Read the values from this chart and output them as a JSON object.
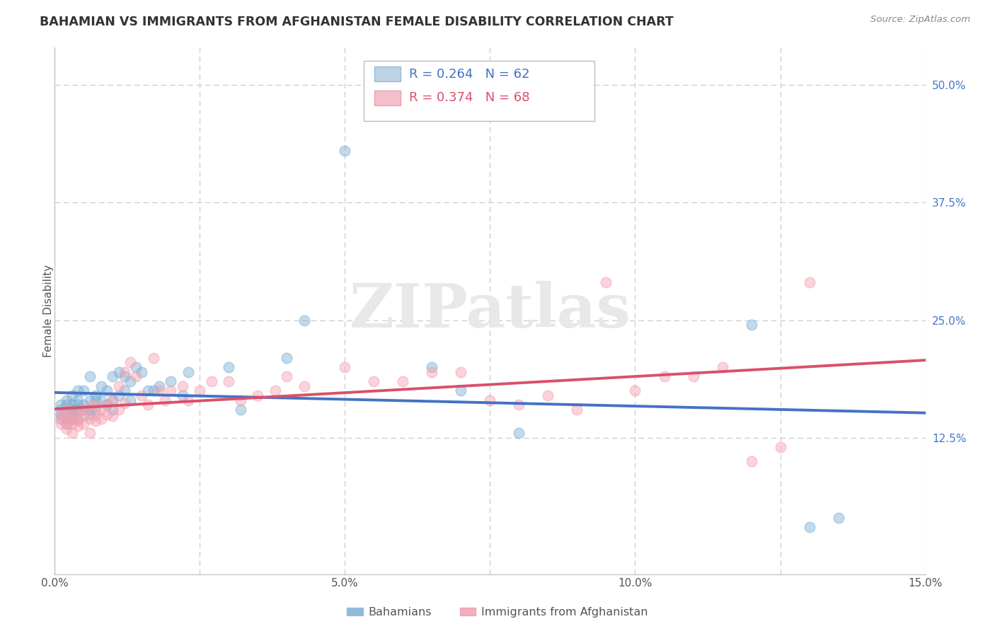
{
  "title": "BAHAMIAN VS IMMIGRANTS FROM AFGHANISTAN FEMALE DISABILITY CORRELATION CHART",
  "source": "Source: ZipAtlas.com",
  "ylabel": "Female Disability",
  "xlim": [
    0.0,
    0.15
  ],
  "ylim": [
    -0.02,
    0.54
  ],
  "xticks": [
    0.0,
    0.025,
    0.05,
    0.075,
    0.1,
    0.125,
    0.15
  ],
  "xticklabels": [
    "0.0%",
    "",
    "5.0%",
    "",
    "10.0%",
    "",
    "15.0%"
  ],
  "yticks_right": [
    0.125,
    0.25,
    0.375,
    0.5
  ],
  "yticklabels_right": [
    "12.5%",
    "25.0%",
    "37.5%",
    "50.0%"
  ],
  "grid_color": "#cccccc",
  "background_color": "#ffffff",
  "legend_line1": "R = 0.264   N = 62",
  "legend_line2": "R = 0.374   N = 68",
  "series1_label": "Bahamians",
  "series2_label": "Immigrants from Afghanistan",
  "series1_color": "#7bafd4",
  "series2_color": "#f4a0b0",
  "line1_color": "#4472c4",
  "line2_color": "#d9506a",
  "watermark": "ZIPatlas",
  "bahamians_x": [
    0.001,
    0.001,
    0.001,
    0.001,
    0.002,
    0.002,
    0.002,
    0.002,
    0.002,
    0.003,
    0.003,
    0.003,
    0.003,
    0.003,
    0.003,
    0.004,
    0.004,
    0.004,
    0.004,
    0.004,
    0.005,
    0.005,
    0.005,
    0.006,
    0.006,
    0.006,
    0.006,
    0.007,
    0.007,
    0.007,
    0.008,
    0.008,
    0.009,
    0.009,
    0.01,
    0.01,
    0.01,
    0.011,
    0.011,
    0.012,
    0.012,
    0.013,
    0.013,
    0.014,
    0.015,
    0.016,
    0.017,
    0.018,
    0.02,
    0.022,
    0.023,
    0.03,
    0.032,
    0.04,
    0.043,
    0.05,
    0.065,
    0.07,
    0.08,
    0.12,
    0.13,
    0.135
  ],
  "bahamians_y": [
    0.15,
    0.155,
    0.16,
    0.145,
    0.155,
    0.16,
    0.145,
    0.165,
    0.14,
    0.155,
    0.16,
    0.17,
    0.145,
    0.155,
    0.15,
    0.165,
    0.155,
    0.16,
    0.145,
    0.175,
    0.175,
    0.16,
    0.155,
    0.19,
    0.155,
    0.165,
    0.15,
    0.165,
    0.17,
    0.155,
    0.18,
    0.165,
    0.175,
    0.16,
    0.19,
    0.165,
    0.155,
    0.195,
    0.17,
    0.19,
    0.175,
    0.185,
    0.165,
    0.2,
    0.195,
    0.175,
    0.175,
    0.18,
    0.185,
    0.17,
    0.195,
    0.2,
    0.155,
    0.21,
    0.25,
    0.43,
    0.2,
    0.175,
    0.13,
    0.245,
    0.03,
    0.04
  ],
  "afghanistan_x": [
    0.001,
    0.001,
    0.001,
    0.002,
    0.002,
    0.002,
    0.002,
    0.003,
    0.003,
    0.003,
    0.003,
    0.004,
    0.004,
    0.004,
    0.005,
    0.005,
    0.005,
    0.006,
    0.006,
    0.006,
    0.007,
    0.007,
    0.007,
    0.008,
    0.008,
    0.009,
    0.009,
    0.01,
    0.01,
    0.011,
    0.011,
    0.012,
    0.012,
    0.013,
    0.014,
    0.015,
    0.016,
    0.017,
    0.018,
    0.019,
    0.02,
    0.022,
    0.023,
    0.025,
    0.027,
    0.03,
    0.032,
    0.035,
    0.038,
    0.04,
    0.043,
    0.05,
    0.055,
    0.06,
    0.065,
    0.07,
    0.075,
    0.08,
    0.085,
    0.09,
    0.1,
    0.105,
    0.11,
    0.115,
    0.12,
    0.125,
    0.13,
    0.095
  ],
  "afghanistan_y": [
    0.14,
    0.145,
    0.15,
    0.14,
    0.148,
    0.155,
    0.135,
    0.145,
    0.15,
    0.14,
    0.13,
    0.15,
    0.143,
    0.138,
    0.148,
    0.14,
    0.155,
    0.145,
    0.158,
    0.13,
    0.15,
    0.143,
    0.16,
    0.155,
    0.145,
    0.16,
    0.15,
    0.165,
    0.148,
    0.18,
    0.155,
    0.195,
    0.162,
    0.205,
    0.19,
    0.17,
    0.16,
    0.21,
    0.175,
    0.165,
    0.175,
    0.18,
    0.165,
    0.175,
    0.185,
    0.185,
    0.165,
    0.17,
    0.175,
    0.19,
    0.18,
    0.2,
    0.185,
    0.185,
    0.195,
    0.195,
    0.165,
    0.16,
    0.17,
    0.155,
    0.175,
    0.19,
    0.19,
    0.2,
    0.1,
    0.115,
    0.29,
    0.29
  ]
}
